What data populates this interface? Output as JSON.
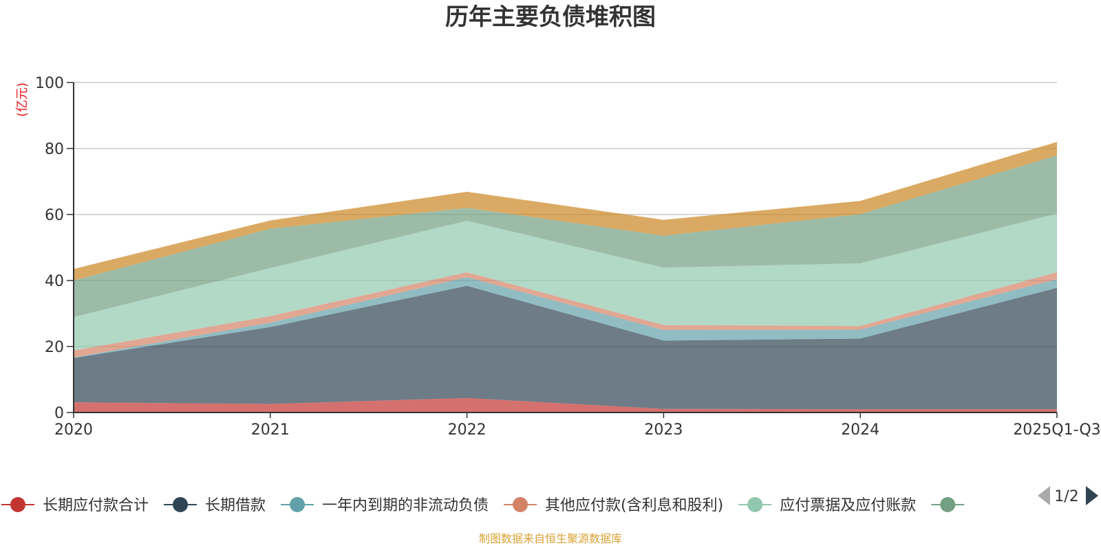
{
  "chart_data": {
    "type": "area",
    "stacked": true,
    "title": "历年主要负债堆积图",
    "y_unit": "(亿元)",
    "x": [
      "2020",
      "2021",
      "2022",
      "2023",
      "2024",
      "2025Q1-Q3"
    ],
    "ylim": [
      0,
      100
    ],
    "y_ticks": [
      "0",
      "20",
      "40",
      "60",
      "80",
      "100"
    ],
    "grid": true,
    "legend_position": "bottom",
    "legend_page": "1/2",
    "series": [
      {
        "name": "长期应付款合计",
        "color": "#c23531",
        "values": [
          3.1,
          2.6,
          4.4,
          1.1,
          1.0,
          1.0
        ]
      },
      {
        "name": "长期借款",
        "color": "#2f4554",
        "values": [
          13.4,
          23.3,
          34.0,
          20.7,
          21.4,
          36.8
        ]
      },
      {
        "name": "一年内到期的非流动负债",
        "color": "#61a0a8",
        "values": [
          0.2,
          1.3,
          2.6,
          3.2,
          2.7,
          2.6
        ]
      },
      {
        "name": "其他应付款(含利息和股利)",
        "color": "#d48265",
        "values": [
          2.1,
          2.0,
          1.5,
          1.5,
          1.1,
          2.1
        ]
      },
      {
        "name": "应付票据及应付账款",
        "color": "#91c7ae",
        "values": [
          10.1,
          14.6,
          15.6,
          17.4,
          19.0,
          17.8
        ]
      },
      {
        "name": "",
        "color": "#749f83",
        "values": [
          11.1,
          11.9,
          3.9,
          9.7,
          14.9,
          17.6
        ]
      },
      {
        "name": "",
        "color": "#ca8622",
        "values": [
          3.5,
          2.5,
          4.9,
          4.8,
          4.0,
          4.1
        ]
      }
    ],
    "source_note": "制图数据来自恒生聚源数据库"
  }
}
